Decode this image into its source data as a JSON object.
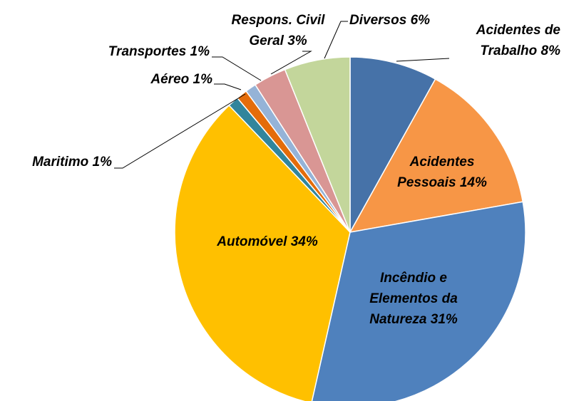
{
  "chart_data": {
    "type": "pie",
    "categories": [
      "Acidentes de Trabalho",
      "Acidentes Pessoais",
      "Incêndio e Elementos da Natureza",
      "Automóvel",
      "Maritimo",
      "Aéreo",
      "Transportes",
      "Respons. Civil Geral",
      "Diversos"
    ],
    "values": [
      8,
      14,
      31,
      34,
      1,
      1,
      1,
      3,
      6
    ],
    "value_labels": [
      "8%",
      "14%",
      "31%",
      "34%",
      "1%",
      "1%",
      "1%",
      "3%",
      "6%"
    ],
    "colors": [
      "#4672a8",
      "#f79646",
      "#4f81bd",
      "#ffc000",
      "#31859c",
      "#e46c0a",
      "#95b3d7",
      "#d99694",
      "#c3d69b"
    ]
  }
}
